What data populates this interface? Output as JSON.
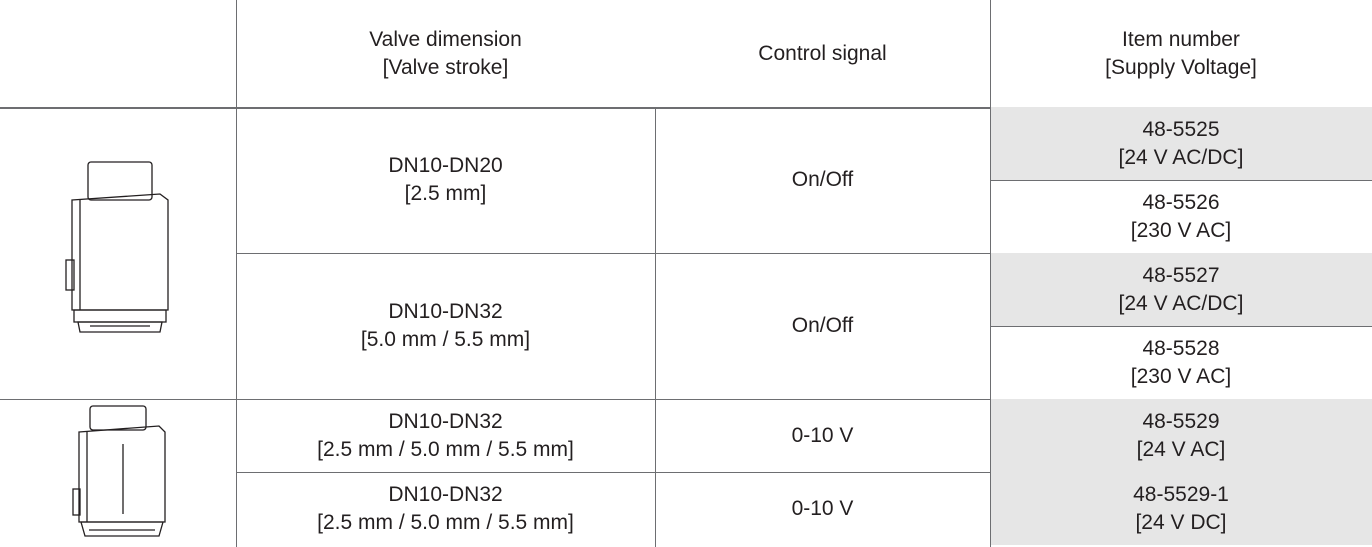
{
  "table": {
    "header": [
      {
        "line1": "Valve dimension",
        "line2": "[Valve stroke]"
      },
      {
        "line1": "Control signal"
      },
      {
        "line1": "Item number",
        "line2": "[Supply Voltage]"
      }
    ],
    "groups": [
      {
        "dimension": "DN10-DN20",
        "stroke": "[2.5 mm]",
        "signal": "On/Off",
        "items": [
          {
            "number": "48-5525",
            "voltage": "[24 V AC/DC]"
          },
          {
            "number": "48-5526",
            "voltage": "[230 V AC]"
          }
        ]
      },
      {
        "dimension": "DN10-DN32",
        "stroke": "[5.0 mm / 5.5 mm]",
        "signal": "On/Off",
        "items": [
          {
            "number": "48-5527",
            "voltage": "[24 V AC/DC]"
          },
          {
            "number": "48-5528",
            "voltage": "[230 V AC]"
          }
        ]
      },
      {
        "dimension": "DN10-DN32",
        "stroke": "[2.5 mm / 5.0 mm / 5.5 mm]",
        "signal": "0-10 V",
        "items": [
          {
            "number": "48-5529",
            "voltage": "[24 V AC]"
          }
        ]
      },
      {
        "dimension": "DN10-DN32",
        "stroke": "[2.5 mm / 5.0 mm / 5.5 mm]",
        "signal": "0-10 V",
        "items": [
          {
            "number": "48-5529-1",
            "voltage": "[24 V DC]"
          }
        ]
      }
    ]
  }
}
